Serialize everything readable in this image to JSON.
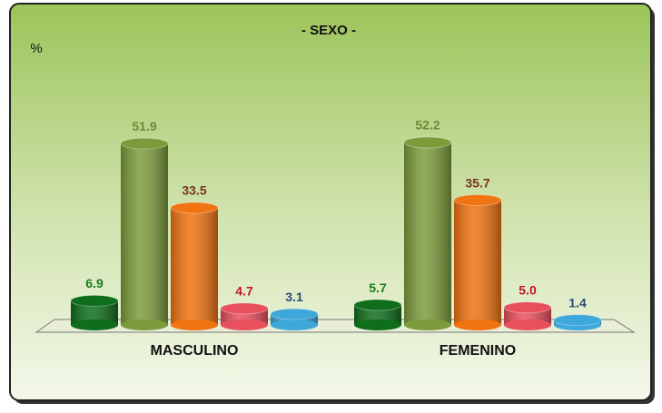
{
  "chart_data": {
    "type": "bar",
    "title": "-  SEXO -",
    "y_label": "%",
    "categories": [
      "MASCULINO",
      "FEMENINO"
    ],
    "series": [
      {
        "color": "#0f6e1c",
        "label_color": "#1b7a1b",
        "values": [
          6.9,
          5.7
        ]
      },
      {
        "color": "#7c9c3c",
        "label_color": "#6b8a3a",
        "values": [
          51.9,
          52.2
        ]
      },
      {
        "color": "#f07412",
        "label_color": "#7a3322",
        "values": [
          33.5,
          35.7
        ]
      },
      {
        "color": "#e8505e",
        "label_color": "#c0142c",
        "values": [
          4.7,
          5.0
        ],
        "value_labels": [
          "4.7",
          "5.0"
        ]
      },
      {
        "color": "#3ea8da",
        "label_color": "#2c4a78",
        "values": [
          3.1,
          1.4
        ]
      }
    ],
    "ylim": [
      0,
      60
    ]
  }
}
